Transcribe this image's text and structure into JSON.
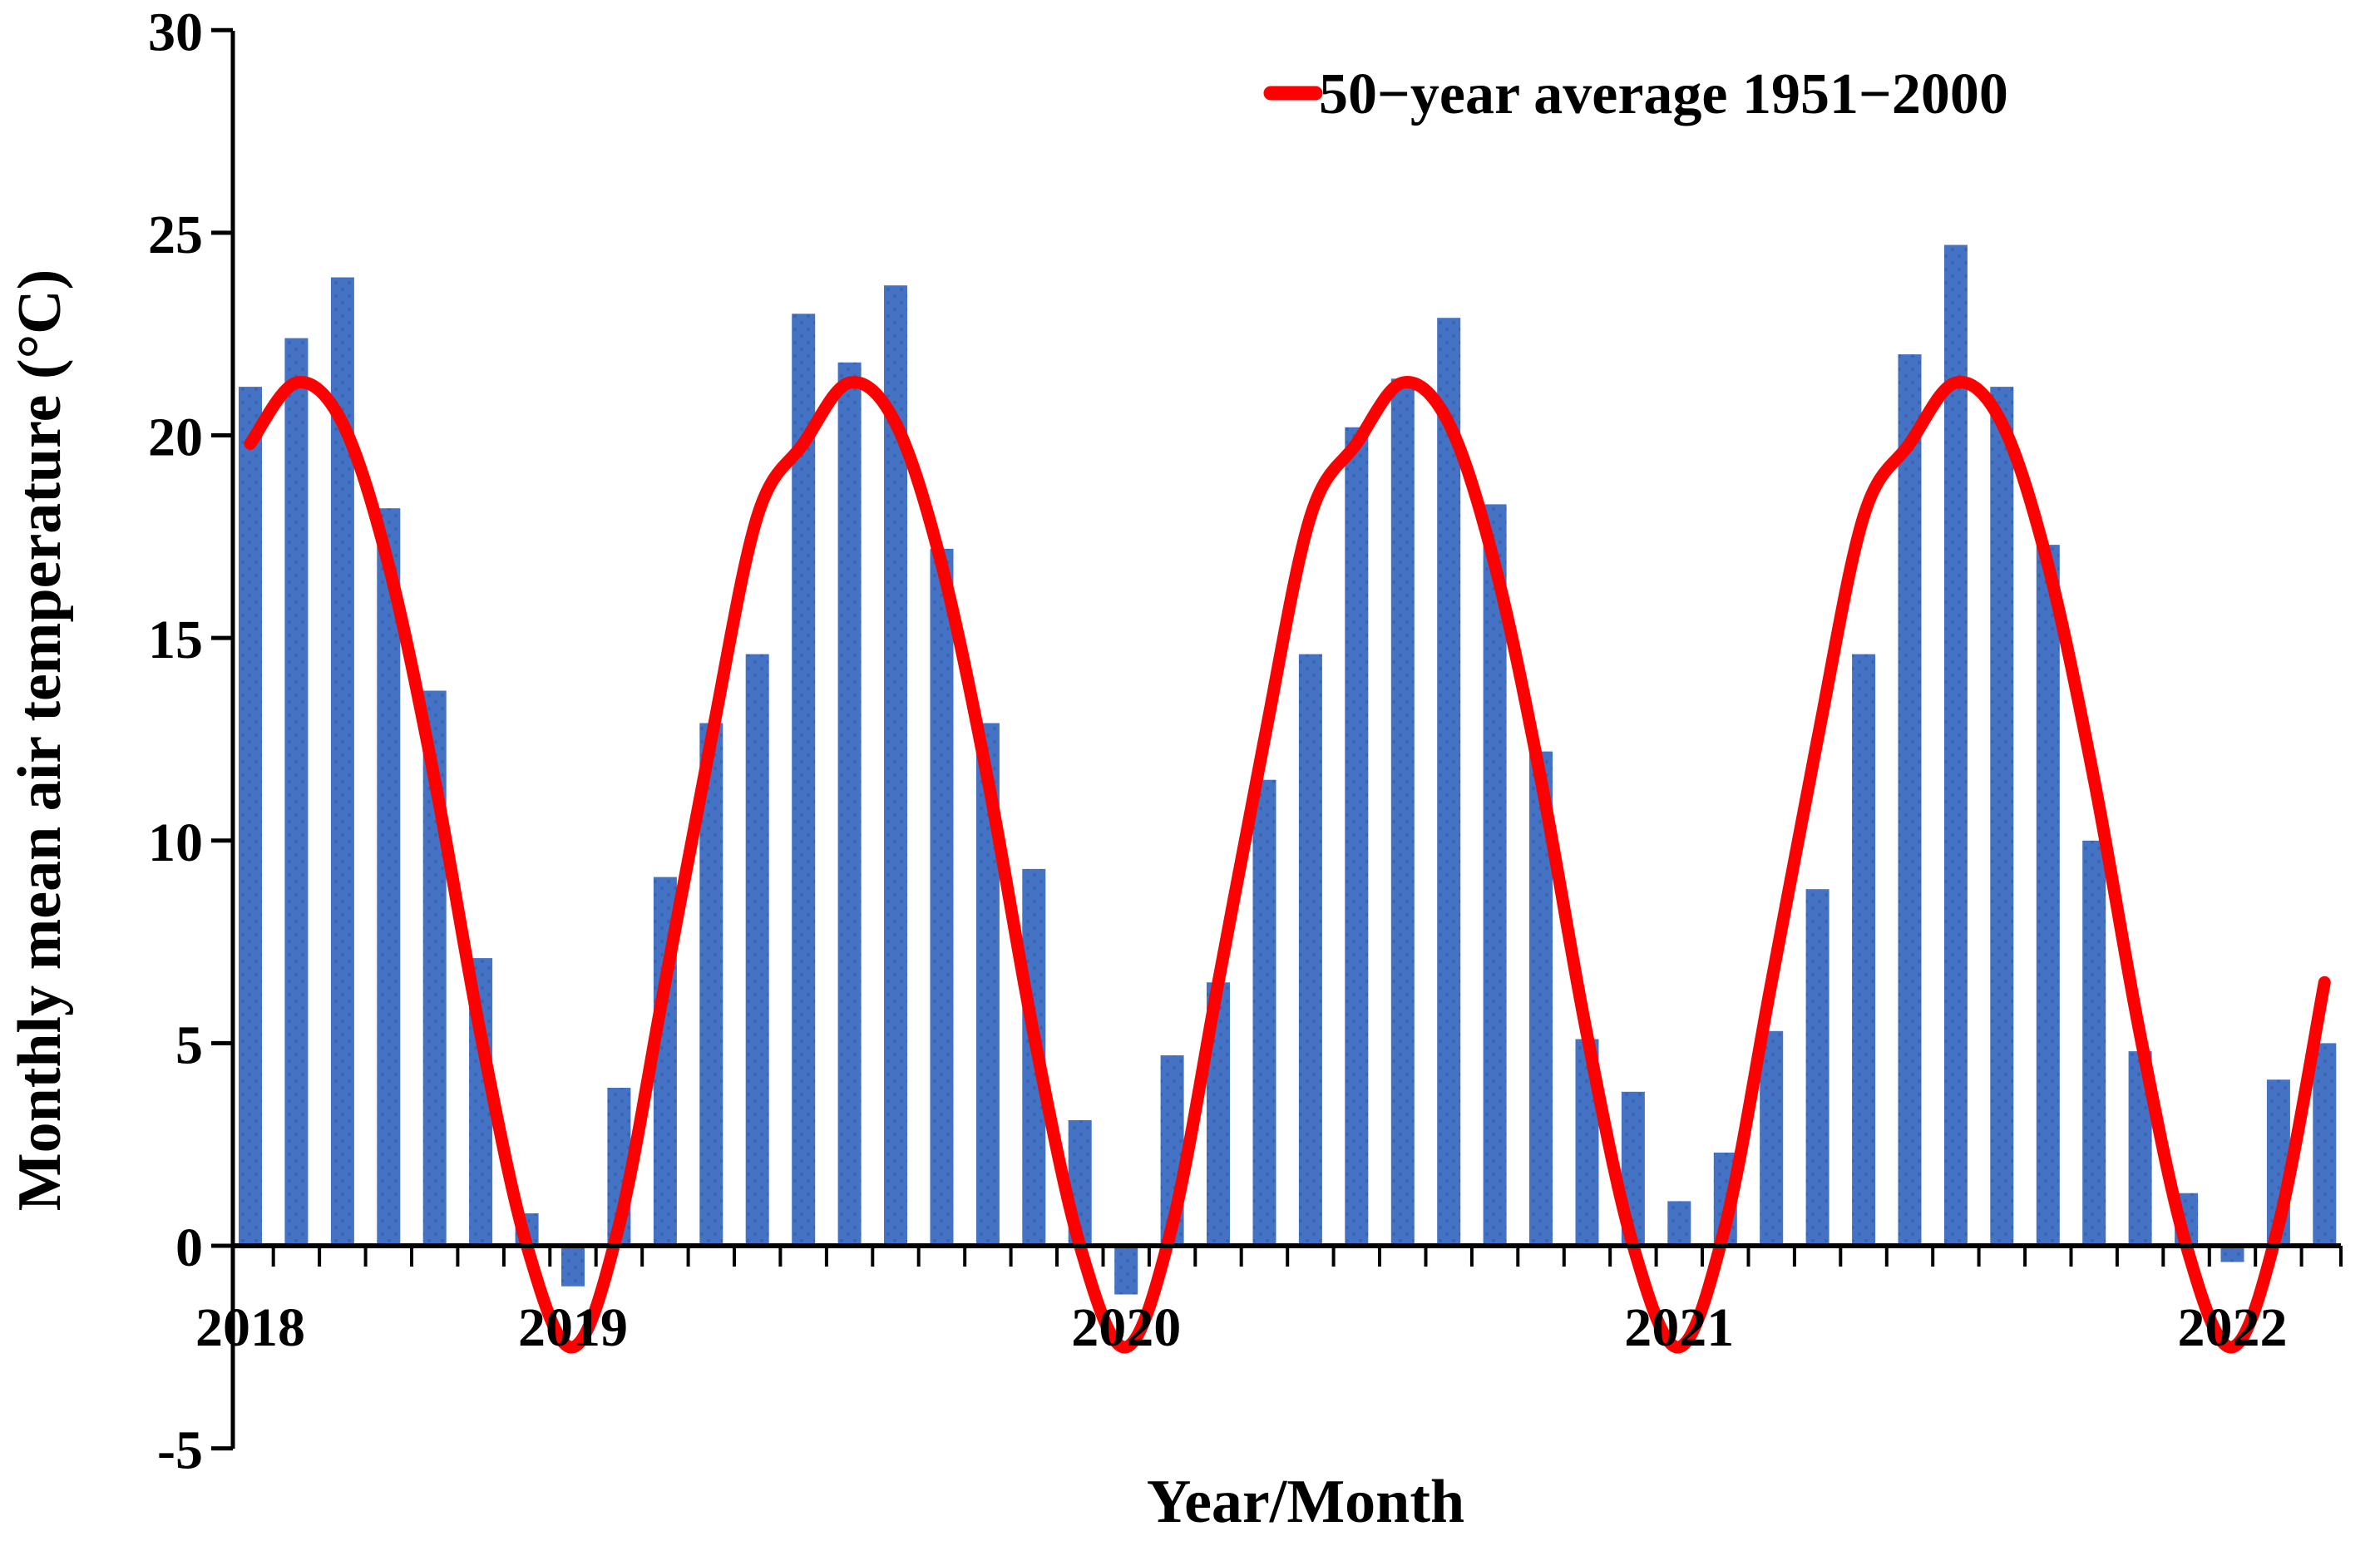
{
  "chart_data": {
    "type": "bar",
    "title": "",
    "xlabel": "Year/Month",
    "ylabel": "Monthly mean air temperature (°C)",
    "ylim": [
      -5,
      30
    ],
    "yticks": [
      30,
      25,
      20,
      15,
      10,
      5,
      0,
      -5
    ],
    "grid": "off",
    "legend_position": "top-right",
    "x_months": [
      "2018-06",
      "2018-07",
      "2018-08",
      "2018-09",
      "2018-10",
      "2018-11",
      "2018-12",
      "2019-01",
      "2019-02",
      "2019-03",
      "2019-04",
      "2019-05",
      "2019-06",
      "2019-07",
      "2019-08",
      "2019-09",
      "2019-10",
      "2019-11",
      "2019-12",
      "2020-01",
      "2020-02",
      "2020-03",
      "2020-04",
      "2020-05",
      "2020-06",
      "2020-07",
      "2020-08",
      "2020-09",
      "2020-10",
      "2020-11",
      "2020-12",
      "2021-01",
      "2021-02",
      "2021-03",
      "2021-04",
      "2021-05",
      "2021-06",
      "2021-07",
      "2021-08",
      "2021-09",
      "2021-10",
      "2021-11",
      "2021-12",
      "2022-01",
      "2022-02",
      "2022-03"
    ],
    "year_tick_labels": [
      {
        "label": "2018",
        "month_index": 0
      },
      {
        "label": "2019",
        "month_index": 7
      },
      {
        "label": "2020",
        "month_index": 19
      },
      {
        "label": "2021",
        "month_index": 31
      },
      {
        "label": "2022",
        "month_index": 43
      }
    ],
    "series": [
      {
        "name": "Monthly mean air temperature",
        "type": "bar",
        "color": "#4472C4",
        "values": [
          21.2,
          22.4,
          23.9,
          18.2,
          13.7,
          7.1,
          0.8,
          -1.0,
          3.9,
          9.1,
          12.9,
          14.6,
          23.0,
          21.8,
          23.7,
          17.2,
          12.9,
          9.3,
          3.1,
          -1.2,
          4.7,
          6.5,
          11.5,
          14.6,
          20.2,
          21.4,
          22.9,
          18.3,
          12.2,
          5.1,
          3.8,
          1.1,
          2.3,
          5.3,
          8.8,
          14.6,
          22.0,
          24.7,
          21.2,
          17.3,
          10.0,
          4.8,
          1.3,
          -0.4,
          4.1,
          5.0
        ]
      },
      {
        "name": "50−year average 1951−2000",
        "type": "line",
        "color": "#FF0000",
        "monthly_climatology": {
          "Jan": -2.5,
          "Feb": 0.5,
          "Mar": 6.5,
          "Apr": 12.5,
          "May": 18.0,
          "Jun": 19.8,
          "Jul": 21.3,
          "Aug": 20.3,
          "Sep": 16.8,
          "Oct": 11.5,
          "Nov": 5.2,
          "Dec": 0.0
        },
        "values": [
          19.8,
          21.3,
          20.3,
          16.8,
          11.5,
          5.2,
          0.0,
          -2.5,
          0.5,
          6.5,
          12.5,
          18.0,
          19.8,
          21.3,
          20.3,
          16.8,
          11.5,
          5.2,
          0.0,
          -2.5,
          0.5,
          6.5,
          12.5,
          18.0,
          19.8,
          21.3,
          20.3,
          16.8,
          11.5,
          5.2,
          0.0,
          -2.5,
          0.5,
          6.5,
          12.5,
          18.0,
          19.8,
          21.3,
          20.3,
          16.8,
          11.5,
          5.2,
          0.0,
          -2.5,
          0.5,
          6.5
        ]
      }
    ]
  }
}
